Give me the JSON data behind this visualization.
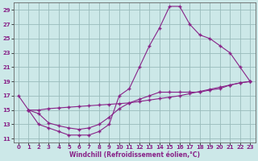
{
  "title": "",
  "xlabel": "Windchill (Refroidissement éolien,°C)",
  "bg_color": "#cce8e8",
  "line_color": "#882288",
  "grid_color": "#99bbbb",
  "xlim": [
    -0.5,
    23.5
  ],
  "ylim": [
    10.5,
    30
  ],
  "yticks": [
    11,
    13,
    15,
    17,
    19,
    21,
    23,
    25,
    27,
    29
  ],
  "xticks": [
    0,
    1,
    2,
    3,
    4,
    5,
    6,
    7,
    8,
    9,
    10,
    11,
    12,
    13,
    14,
    15,
    16,
    17,
    18,
    19,
    20,
    21,
    22,
    23
  ],
  "curve1_x": [
    0,
    1,
    2,
    3,
    4,
    5,
    6,
    7,
    8,
    9,
    10,
    11,
    12,
    13,
    14,
    15,
    16,
    17,
    18,
    19,
    20,
    21,
    22,
    23
  ],
  "curve1_y": [
    17,
    15,
    13,
    12.5,
    12,
    11.5,
    11.5,
    11.5,
    12,
    13,
    17,
    18,
    21,
    24,
    26.5,
    29.5,
    29.5,
    27,
    25.5,
    25,
    24,
    23,
    21,
    19
  ],
  "curve2_x": [
    1,
    2,
    3,
    4,
    5,
    6,
    7,
    8,
    9,
    10,
    11,
    12,
    13,
    14,
    15,
    16,
    17,
    18,
    19,
    20,
    21,
    22,
    23
  ],
  "curve2_y": [
    15,
    15,
    15.2,
    15.3,
    15.4,
    15.5,
    15.6,
    15.7,
    15.8,
    15.9,
    16.0,
    16.2,
    16.4,
    16.6,
    16.8,
    17.0,
    17.3,
    17.6,
    17.9,
    18.2,
    18.5,
    18.8,
    19.0
  ],
  "curve3_x": [
    1,
    2,
    3,
    4,
    5,
    6,
    7,
    8,
    9,
    10,
    11,
    12,
    13,
    14,
    15,
    16,
    17,
    18,
    19,
    20,
    21,
    22,
    23
  ],
  "curve3_y": [
    15,
    14.5,
    13.2,
    12.8,
    12.5,
    12.3,
    12.5,
    13.0,
    14.0,
    15.2,
    16.0,
    16.5,
    17.0,
    17.5,
    17.5,
    17.5,
    17.5,
    17.5,
    17.8,
    18.0,
    18.5,
    18.8,
    19.0
  ]
}
